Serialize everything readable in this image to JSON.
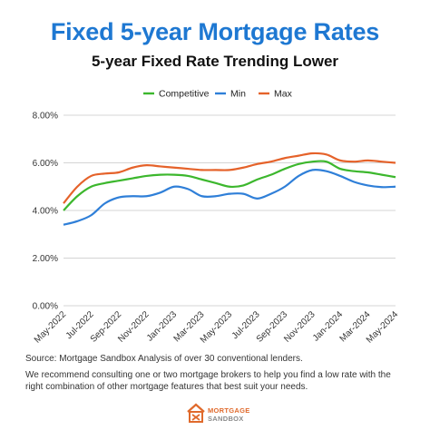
{
  "colors": {
    "title": "#1e78d2",
    "competitive": "#3cb72d",
    "min": "#2f7fd8",
    "max": "#e5622a",
    "grid": "#d4d4d4"
  },
  "chart_data": {
    "type": "line",
    "title": "Fixed 5-year Mortgage Rates",
    "subtitle": "5-year Fixed Rate Trending Lower",
    "xlabel": "",
    "ylabel": "",
    "x_tick_labels": [
      "May-2022",
      "Jul-2022",
      "Sep-2022",
      "Nov-2022",
      "Jan-2023",
      "Mar-2023",
      "May-2023",
      "Jul-2023",
      "Sep-2023",
      "Nov-2023",
      "Jan-2024",
      "Mar-2024",
      "May-2024"
    ],
    "y_tick_labels": [
      "0.00%",
      "2.00%",
      "4.00%",
      "6.00%",
      "8.00%"
    ],
    "ylim": [
      0,
      8
    ],
    "grid": "horizontal",
    "legend_position": "top",
    "x": [
      "May-2022",
      "Jun-2022",
      "Jul-2022",
      "Aug-2022",
      "Sep-2022",
      "Oct-2022",
      "Nov-2022",
      "Dec-2022",
      "Jan-2023",
      "Feb-2023",
      "Mar-2023",
      "Apr-2023",
      "May-2023",
      "Jun-2023",
      "Jul-2023",
      "Aug-2023",
      "Sep-2023",
      "Oct-2023",
      "Nov-2023",
      "Dec-2023",
      "Jan-2024",
      "Feb-2024",
      "Mar-2024",
      "Apr-2024",
      "May-2024"
    ],
    "series": [
      {
        "name": "Competitive",
        "color": "#3cb72d",
        "values": [
          4.0,
          4.6,
          5.0,
          5.15,
          5.25,
          5.35,
          5.45,
          5.5,
          5.5,
          5.45,
          5.3,
          5.15,
          5.0,
          5.05,
          5.3,
          5.5,
          5.75,
          5.95,
          6.05,
          6.05,
          5.75,
          5.65,
          5.6,
          5.5,
          5.4
        ]
      },
      {
        "name": "Min",
        "color": "#2f7fd8",
        "values": [
          3.4,
          3.55,
          3.8,
          4.3,
          4.55,
          4.6,
          4.6,
          4.75,
          5.0,
          4.9,
          4.6,
          4.6,
          4.7,
          4.7,
          4.5,
          4.7,
          5.0,
          5.45,
          5.7,
          5.65,
          5.45,
          5.2,
          5.05,
          4.98,
          5.0
        ]
      },
      {
        "name": "Max",
        "color": "#e5622a",
        "values": [
          4.3,
          5.0,
          5.45,
          5.55,
          5.6,
          5.8,
          5.9,
          5.85,
          5.8,
          5.75,
          5.7,
          5.7,
          5.7,
          5.8,
          5.95,
          6.05,
          6.2,
          6.3,
          6.4,
          6.35,
          6.1,
          6.05,
          6.1,
          6.05,
          6.0
        ]
      }
    ]
  },
  "footer": {
    "source": "Source: Mortgage Sandbox Analysis of over 30 conventional lenders.",
    "note": "We recommend consulting one or two mortgage brokers to help you find a low rate with the right combination of other mortgage features that best suit your needs."
  },
  "logo": {
    "line1": "MORTGAGE",
    "line2": "SANDBOX"
  }
}
